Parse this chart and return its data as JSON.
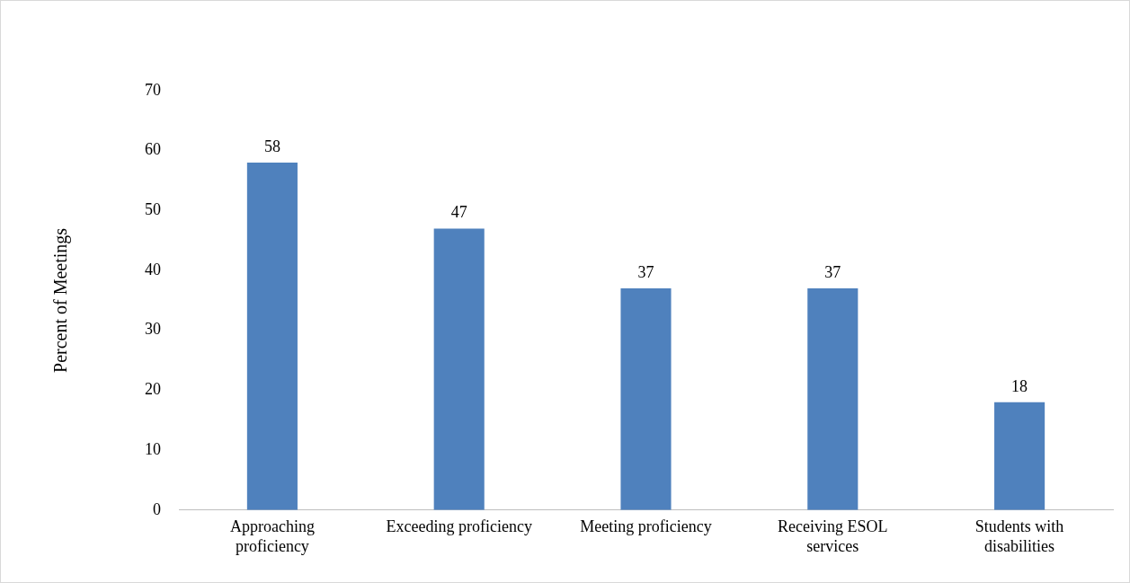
{
  "chart_data": {
    "type": "bar",
    "ylabel": "Percent of Meetings",
    "categories": [
      "Approaching proficiency",
      "Exceeding proficiency",
      "Meeting proficiency",
      "Receiving ESOL services",
      "Students with disabilities"
    ],
    "values": [
      58,
      47,
      37,
      37,
      18
    ],
    "color": "#4f81bd",
    "ylim": [
      0,
      70
    ],
    "yticks": [
      0,
      10,
      20,
      30,
      40,
      50,
      60,
      70
    ],
    "grid": false,
    "legend": false,
    "data_labels": true
  }
}
